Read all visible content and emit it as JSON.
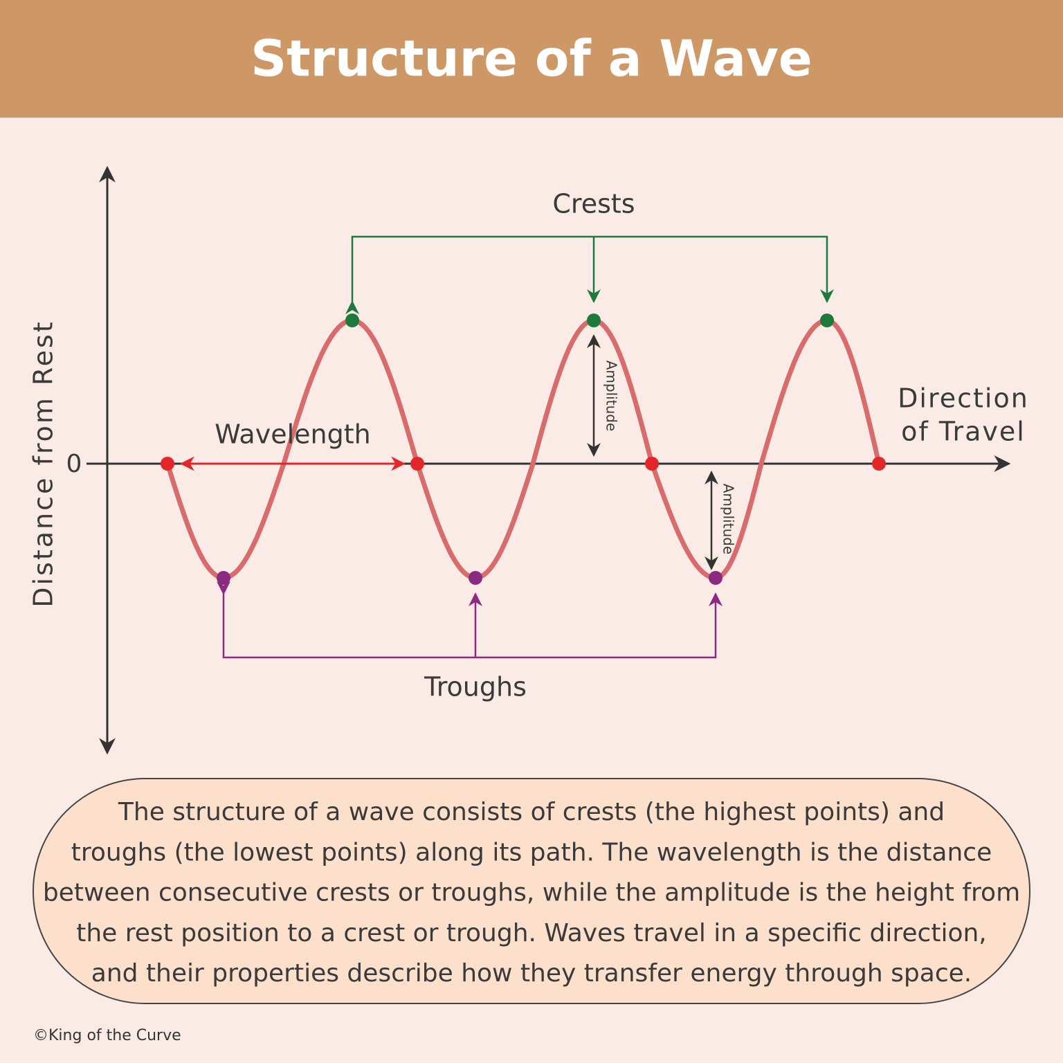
{
  "header": {
    "title": "Structure of a Wave"
  },
  "diagram": {
    "y_axis_label": "Distance from Rest",
    "zero_label": "0",
    "x_axis_label": [
      "Direction",
      "of Travel"
    ],
    "wavelength_label": "Wavelength",
    "crests_label": "Crests",
    "troughs_label": "Troughs",
    "amplitude_labels": [
      "Amplitude",
      "Amplitude"
    ]
  },
  "description": {
    "lines": [
      "The structure of a wave consists of crests (the highest points) and",
      "troughs (the lowest points) along its path. The wavelength is the distance",
      "between consecutive crests or troughs, while the amplitude is the height from",
      "the rest position to a crest or trough. Waves travel in a specific direction,",
      "and their properties describe how they transfer energy through space."
    ]
  },
  "footer": {
    "copyright": "©King of the Curve"
  }
}
